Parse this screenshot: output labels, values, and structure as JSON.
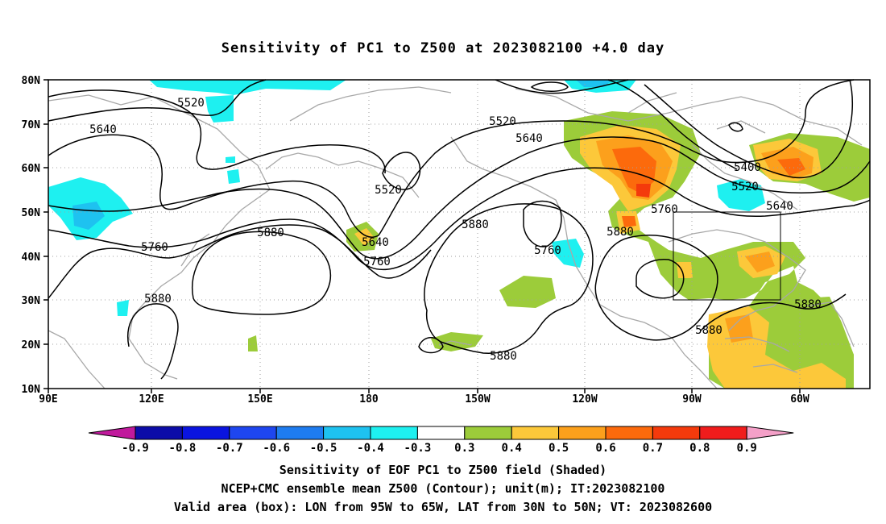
{
  "title": "Sensitivity of PC1 to Z500 at 2023082100 +4.0 day",
  "lat_labels": [
    "80N",
    "70N",
    "60N",
    "50N",
    "40N",
    "30N",
    "20N",
    "10N"
  ],
  "lon_labels": [
    "90E",
    "120E",
    "150E",
    "180",
    "150W",
    "120W",
    "90W",
    "60W"
  ],
  "colorbar": {
    "labels": [
      "-0.9",
      "-0.8",
      "-0.7",
      "-0.6",
      "-0.5",
      "-0.4",
      "-0.3",
      "0.3",
      "0.4",
      "0.5",
      "0.6",
      "0.7",
      "0.8",
      "0.9"
    ],
    "colors": [
      "#c01a9c",
      "#0c0ca8",
      "#0a14e0",
      "#1e46f0",
      "#1e7cf0",
      "#1ec2f0",
      "#1ef0f0",
      "#ffffff",
      "#9ccc3a",
      "#fcc83a",
      "#fca01c",
      "#fc6a0c",
      "#f43a0c",
      "#f01c1c",
      "#f4a0c8"
    ]
  },
  "contour_labels": [
    {
      "text": "5520"
    },
    {
      "text": "5640"
    },
    {
      "text": "5760"
    },
    {
      "text": "5880"
    },
    {
      "text": "5880"
    },
    {
      "text": "5640"
    },
    {
      "text": "5760"
    },
    {
      "text": "5520"
    },
    {
      "text": "5520"
    },
    {
      "text": "5640"
    },
    {
      "text": "5880"
    },
    {
      "text": "5760"
    },
    {
      "text": "5880"
    },
    {
      "text": "5760"
    },
    {
      "text": "5880"
    },
    {
      "text": "5400"
    },
    {
      "text": "5520"
    },
    {
      "text": "5640"
    },
    {
      "text": "5880"
    },
    {
      "text": "5880"
    }
  ],
  "footer": {
    "line1": "Sensitivity of EOF PC1 to Z500 field (Shaded)",
    "line2": "NCEP+CMC ensemble mean Z500 (Contour); unit(m); IT:2023082100",
    "line3": "Valid area (box): LON from 95W to 65W, LAT from 30N to 50N; VT: 2023082600"
  }
}
